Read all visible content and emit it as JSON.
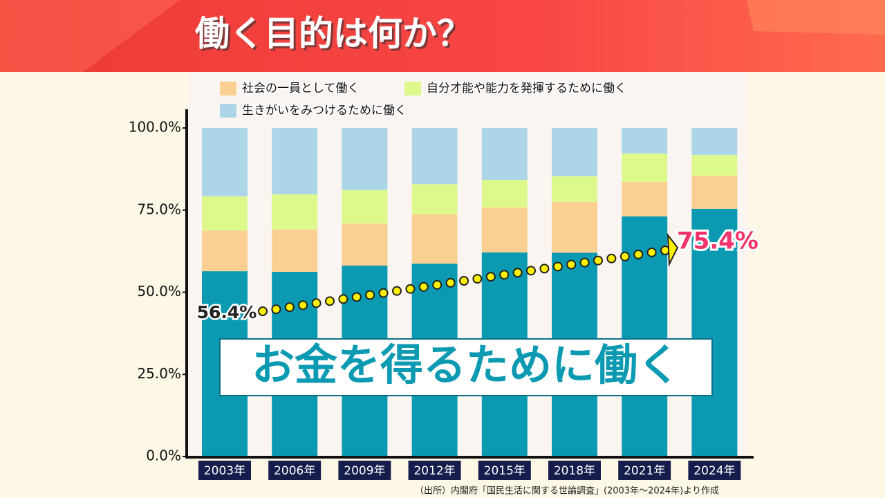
{
  "title": "働く目的は何か？",
  "source": "（出所）内閣府「国民生活に関する世論調査」(2003年～2024年)より作成",
  "chart_data": {
    "type": "stacked-bar",
    "categories": [
      "2003年",
      "2006年",
      "2009年",
      "2012年",
      "2015年",
      "2018年",
      "2021年",
      "2024年"
    ],
    "series": [
      {
        "name": "お金を得るために働く",
        "color": "#0b9ab2",
        "values": [
          56.4,
          56.2,
          58.1,
          58.7,
          62.1,
          62.0,
          73.1,
          75.4
        ],
        "value_labels": [
          "56.4%",
          null,
          null,
          null,
          null,
          null,
          null,
          "75.4%"
        ]
      },
      {
        "name": "社会の一員として働く",
        "color": "#fbcf92",
        "values": [
          12.4,
          12.9,
          12.8,
          15.0,
          13.7,
          15.5,
          10.5,
          10.1
        ]
      },
      {
        "name": "自分才能や能力を発揮するために働く",
        "color": "#def98b",
        "values": [
          10.4,
          10.7,
          10.2,
          9.2,
          8.4,
          7.8,
          8.6,
          6.3
        ]
      },
      {
        "name": "生きがいをみつけるために働く",
        "color": "#acd6e8",
        "values": [
          20.8,
          20.2,
          18.9,
          17.1,
          15.8,
          14.7,
          7.8,
          8.2
        ]
      }
    ],
    "ylim": [
      0,
      100
    ],
    "yticks": [
      {
        "value": 0,
        "label": "0.0%"
      },
      {
        "value": 25,
        "label": "25.0%"
      },
      {
        "value": 50,
        "label": "50.0%"
      },
      {
        "value": 75,
        "label": "75.0%"
      },
      {
        "value": 100,
        "label": "100.0%"
      }
    ]
  }
}
